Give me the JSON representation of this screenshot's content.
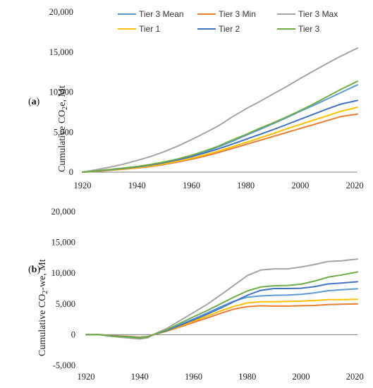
{
  "chart_data": [
    {
      "type": "line",
      "panel_label": "a",
      "ylabel": "Cumulative CO",
      "ylabel_sub": "2",
      "ylabel_suffix": "e, Mt",
      "xlim": [
        1920,
        2021
      ],
      "ylim": [
        0,
        20000
      ],
      "yticks": [
        0,
        5000,
        10000,
        15000,
        20000
      ],
      "ytick_labels": [
        "0",
        "5,000",
        "10,000",
        "15,000",
        "20,000"
      ],
      "xticks": [
        1920,
        1940,
        1960,
        1980,
        2000,
        2020
      ],
      "xtick_labels": [
        "1920",
        "1940",
        "1960",
        "1980",
        "2000",
        "2020"
      ],
      "legend": "top, two rows",
      "x": [
        1920,
        1925,
        1930,
        1935,
        1940,
        1945,
        1950,
        1955,
        1960,
        1965,
        1970,
        1975,
        1980,
        1985,
        1990,
        1995,
        2000,
        2005,
        2010,
        2015,
        2021
      ],
      "series": [
        {
          "name": "Tier 3 Mean",
          "color": "#5B9BD5",
          "values": [
            0,
            150,
            320,
            500,
            700,
            950,
            1250,
            1600,
            2050,
            2550,
            3150,
            3850,
            4600,
            5300,
            6050,
            6800,
            7600,
            8350,
            9150,
            9950,
            10900
          ]
        },
        {
          "name": "Tier 3 Min",
          "color": "#ED7D31",
          "values": [
            0,
            100,
            220,
            350,
            500,
            700,
            950,
            1250,
            1600,
            2000,
            2450,
            2950,
            3450,
            3950,
            4450,
            4950,
            5450,
            5950,
            6450,
            6950,
            7250
          ]
        },
        {
          "name": "Tier 3 Max",
          "color": "#A5A5A5",
          "values": [
            0,
            300,
            620,
            1000,
            1450,
            1950,
            2550,
            3250,
            4050,
            4900,
            5800,
            6900,
            7900,
            8800,
            9750,
            10700,
            11700,
            12650,
            13600,
            14500,
            15500
          ]
        },
        {
          "name": "Tier 1",
          "color": "#FFC000",
          "values": [
            0,
            110,
            240,
            380,
            540,
            760,
            1030,
            1350,
            1720,
            2150,
            2630,
            3150,
            3700,
            4250,
            4800,
            5400,
            5950,
            6500,
            7050,
            7600,
            8100
          ]
        },
        {
          "name": "Tier 2",
          "color": "#4472C4",
          "values": [
            0,
            130,
            280,
            450,
            640,
            880,
            1180,
            1520,
            1930,
            2400,
            2920,
            3500,
            4100,
            4700,
            5300,
            5950,
            6600,
            7250,
            7900,
            8500,
            8950
          ]
        },
        {
          "name": "Tier 3",
          "color": "#70AD47",
          "values": [
            0,
            150,
            320,
            500,
            700,
            960,
            1270,
            1650,
            2100,
            2650,
            3250,
            4000,
            4700,
            5450,
            6150,
            6900,
            7700,
            8550,
            9450,
            10350,
            11350
          ]
        }
      ]
    },
    {
      "type": "line",
      "panel_label": "b",
      "ylabel": "Cumulative CO",
      "ylabel_sub": "2",
      "ylabel_suffix": "-we, Mt",
      "xlim": [
        1920,
        2021
      ],
      "ylim": [
        -5000,
        20000
      ],
      "yticks": [
        -5000,
        0,
        5000,
        10000,
        15000,
        20000
      ],
      "ytick_labels": [
        "-5,000",
        "0",
        "5,000",
        "10,000",
        "15,000",
        "20,000"
      ],
      "xticks": [
        1920,
        1940,
        1960,
        1980,
        2000,
        2020
      ],
      "xtick_labels": [
        "1920",
        "1940",
        "1960",
        "1980",
        "2000",
        "2020"
      ],
      "x": [
        1920,
        1925,
        1930,
        1935,
        1940,
        1943,
        1945,
        1950,
        1955,
        1960,
        1965,
        1970,
        1975,
        1980,
        1985,
        1990,
        1995,
        2000,
        2005,
        2010,
        2015,
        2021
      ],
      "series": [
        {
          "name": "Tier 3 Mean",
          "color": "#5B9BD5",
          "values": [
            0,
            0,
            -250,
            -350,
            -500,
            -350,
            0,
            700,
            1600,
            2550,
            3500,
            4500,
            5450,
            6100,
            6300,
            6400,
            6450,
            6550,
            6800,
            7150,
            7300,
            7450
          ]
        },
        {
          "name": "Tier 3 Min",
          "color": "#ED7D31",
          "values": [
            0,
            0,
            -150,
            -250,
            -400,
            -300,
            0,
            550,
            1250,
            2000,
            2700,
            3450,
            4150,
            4550,
            4700,
            4650,
            4650,
            4700,
            4750,
            4900,
            4950,
            5000
          ]
        },
        {
          "name": "Tier 3 Max",
          "color": "#A5A5A5",
          "values": [
            0,
            0,
            -300,
            -500,
            -700,
            -500,
            0,
            1000,
            2300,
            3600,
            4900,
            6450,
            8000,
            9600,
            10500,
            10700,
            10700,
            11000,
            11400,
            11900,
            12000,
            12300
          ]
        },
        {
          "name": "Tier 1",
          "color": "#FFC000",
          "values": [
            0,
            0,
            -180,
            -280,
            -450,
            -330,
            0,
            600,
            1350,
            2200,
            3000,
            3850,
            4600,
            5150,
            5350,
            5350,
            5400,
            5450,
            5550,
            5700,
            5700,
            5750
          ]
        },
        {
          "name": "Tier 2",
          "color": "#4472C4",
          "values": [
            0,
            0,
            -200,
            -320,
            -480,
            -350,
            0,
            650,
            1500,
            2400,
            3300,
            4300,
            5350,
            6400,
            7200,
            7500,
            7500,
            7550,
            7800,
            8250,
            8400,
            8600
          ]
        },
        {
          "name": "Tier 3",
          "color": "#70AD47",
          "values": [
            0,
            0,
            -250,
            -380,
            -550,
            -400,
            0,
            800,
            1850,
            2900,
            3900,
            5000,
            6100,
            7100,
            7750,
            7950,
            8000,
            8200,
            8700,
            9350,
            9700,
            10200
          ]
        }
      ]
    }
  ]
}
